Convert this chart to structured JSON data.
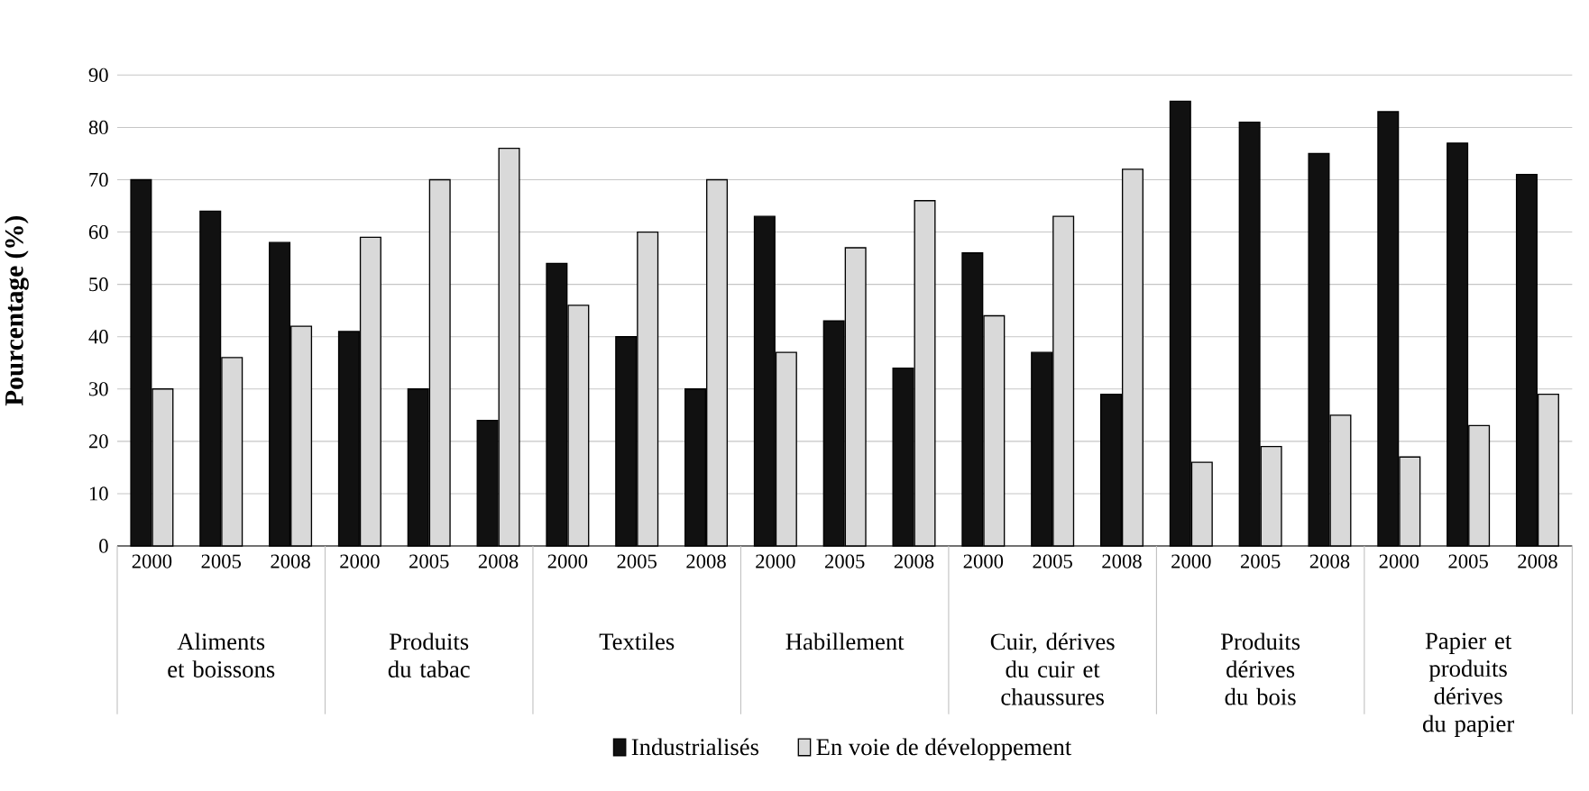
{
  "chart_data": {
    "type": "bar",
    "ylabel": "Pourcentage (%)",
    "categories": [
      "2000",
      "2005",
      "2008",
      "2000",
      "2005",
      "2008",
      "2000",
      "2005",
      "2008",
      "2000",
      "2005",
      "2008",
      "2000",
      "2005",
      "2008",
      "2000",
      "2005",
      "2008",
      "2000",
      "2005",
      "2008"
    ],
    "series": [
      {
        "name": "Industrialisés",
        "color": "#111111",
        "values": [
          70,
          64,
          58,
          41,
          30,
          24,
          54,
          40,
          30,
          63,
          43,
          34,
          56,
          37,
          29,
          85,
          81,
          75,
          83,
          77,
          71
        ]
      },
      {
        "name": "En voie de développement",
        "color": "#d9d9d9",
        "values": [
          30,
          36,
          42,
          59,
          70,
          76,
          46,
          60,
          70,
          37,
          57,
          66,
          44,
          63,
          72,
          16,
          19,
          25,
          17,
          23,
          29
        ]
      }
    ],
    "annotations": [
      "Aliments et boissons",
      "Produits du tabac",
      "Textiles",
      "Habillement",
      "Cuir, dérives du cuir et chaussures",
      "Produits dérives du bois",
      "Papier et produits dérives du papier"
    ],
    "ylim": [
      0,
      90
    ],
    "yticks": [
      0,
      10,
      20,
      30,
      40,
      50,
      60,
      70,
      80,
      90
    ],
    "grid": "y",
    "legend": "bottom"
  }
}
